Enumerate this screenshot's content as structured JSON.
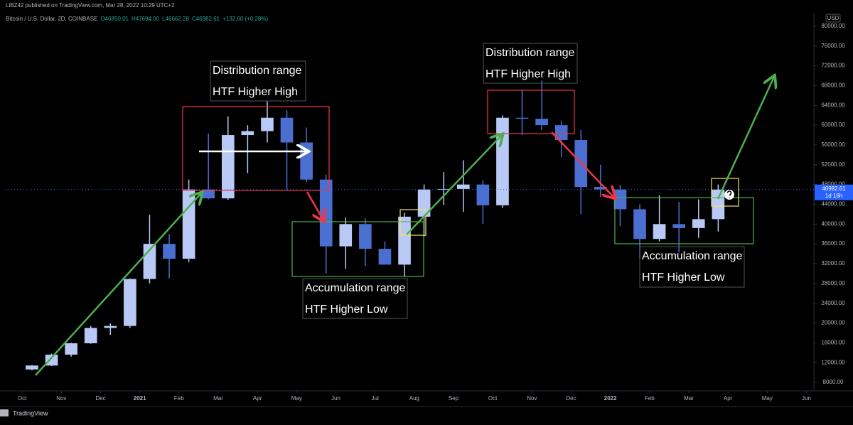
{
  "chart_data": {
    "type": "candlestick",
    "header": "LiBZ42 published on TradingView.com, Mar 28, 2022 10:29 UTC+2",
    "legend": {
      "symbol": "Bitcoin / U.S. Dollar, 2D, COINBASE",
      "ohlc": [
        "O46850.01",
        "H47694.00",
        "L46662.28",
        "C46982.61",
        "+132.60 (+0.28%)"
      ]
    },
    "currency": "USD",
    "countdown": "1d 16h",
    "footer": "TradingView",
    "x": [
      0,
      0.5,
      1,
      1.5,
      2,
      2.5,
      3,
      3.5,
      4,
      4.5,
      5,
      5.5,
      6,
      6.5,
      7,
      7.5,
      8,
      8.5,
      9,
      9.5,
      10,
      10.5,
      11,
      11.5,
      12,
      12.5,
      13,
      13.5,
      14,
      14.5,
      15,
      15.5,
      16,
      16.5,
      17,
      17.5
    ],
    "open": [
      10600,
      11400,
      13600,
      15900,
      19000,
      19400,
      28900,
      36000,
      33000,
      47000,
      45200,
      58000,
      58800,
      61500,
      56500,
      49000,
      35500,
      40000,
      35000,
      31800,
      41500,
      47000,
      47100,
      48000,
      43800,
      61500,
      61300,
      60000,
      57000,
      47500,
      47000,
      43000,
      37000,
      40000,
      39200,
      41000
    ],
    "high": [
      11500,
      13800,
      16000,
      19400,
      19900,
      29000,
      41900,
      38000,
      49000,
      58300,
      61800,
      60000,
      64800,
      63000,
      59500,
      50000,
      41300,
      41200,
      36500,
      42300,
      48000,
      50500,
      52900,
      48800,
      62000,
      67000,
      69000,
      60900,
      59000,
      52000,
      47900,
      44000,
      45800,
      44500,
      45000,
      48000
    ],
    "low": [
      10400,
      11300,
      13200,
      15800,
      17600,
      19000,
      28000,
      29000,
      32300,
      45000,
      44900,
      50300,
      56500,
      47000,
      48500,
      30000,
      31000,
      31500,
      32000,
      29300,
      37500,
      43900,
      42500,
      40000,
      43300,
      58000,
      59000,
      53500,
      42000,
      45500,
      39600,
      33000,
      36500,
      34300,
      37200,
      38500
    ],
    "close": [
      11400,
      13600,
      15900,
      19000,
      19400,
      28900,
      36000,
      33000,
      47000,
      45200,
      58000,
      58800,
      61500,
      56500,
      49000,
      35500,
      40000,
      35000,
      31800,
      41500,
      47000,
      47100,
      48000,
      43800,
      61500,
      61300,
      60000,
      57000,
      47500,
      47000,
      43000,
      37000,
      40000,
      39200,
      41000,
      46982.61
    ],
    "up_color": "#b9c9f5",
    "down_color": "#4b6fd1",
    "xlim": [
      -0.42,
      20.1
    ],
    "xticks": [
      {
        "value": 0,
        "label": "Oct"
      },
      {
        "value": 1,
        "label": "Nov"
      },
      {
        "value": 2,
        "label": "Dec"
      },
      {
        "value": 3,
        "label": "2021"
      },
      {
        "value": 4,
        "label": "Feb"
      },
      {
        "value": 5,
        "label": "Mar"
      },
      {
        "value": 6,
        "label": "Apr"
      },
      {
        "value": 7,
        "label": "May"
      },
      {
        "value": 8,
        "label": "Jun"
      },
      {
        "value": 9,
        "label": "Jul"
      },
      {
        "value": 10,
        "label": "Aug"
      },
      {
        "value": 11,
        "label": "Sep"
      },
      {
        "value": 12,
        "label": "Oct"
      },
      {
        "value": 13,
        "label": "Nov"
      },
      {
        "value": 14,
        "label": "Dec"
      },
      {
        "value": 15,
        "label": "2022"
      },
      {
        "value": 16,
        "label": "Feb"
      },
      {
        "value": 17,
        "label": "Mar"
      },
      {
        "value": 18,
        "label": "Apr"
      },
      {
        "value": 19,
        "label": "May"
      },
      {
        "value": 20,
        "label": "Jun"
      }
    ],
    "ylim": [
      6560,
      82150
    ],
    "yticks": [
      {
        "value": 8000,
        "label": "8000.00"
      },
      {
        "value": 12000,
        "label": "12000.00"
      },
      {
        "value": 16000,
        "label": "16000.00"
      },
      {
        "value": 20000,
        "label": "20000.00"
      },
      {
        "value": 24000,
        "label": "24000.00"
      },
      {
        "value": 28000,
        "label": "28000.00"
      },
      {
        "value": 32000,
        "label": "32000.00"
      },
      {
        "value": 36000,
        "label": "36000.00"
      },
      {
        "value": 40000,
        "label": "40000.00"
      },
      {
        "value": 44000,
        "label": "44000.00"
      },
      {
        "value": 48000,
        "label": "48000.00"
      },
      {
        "value": 52000,
        "label": "52000.00"
      },
      {
        "value": 56000,
        "label": "56000.00"
      },
      {
        "value": 60000,
        "label": "60000.00"
      },
      {
        "value": 64000,
        "label": "64000.00"
      },
      {
        "value": 68000,
        "label": "68000.00"
      },
      {
        "value": 72000,
        "label": "72000.00"
      },
      {
        "value": 76000,
        "label": "76000.00"
      },
      {
        "value": 80000,
        "label": "80000.00"
      }
    ],
    "grid": false,
    "annotations": [
      {
        "lines": [
          "Distribution range",
          "HTF Higher High"
        ]
      },
      {
        "lines": [
          "Distribution range",
          "HTF Higher High"
        ]
      },
      {
        "lines": [
          "Accumulation range",
          "HTF Higher Low"
        ]
      },
      {
        "lines": [
          "Accumulation range",
          "HTF Higher Low"
        ]
      }
    ]
  }
}
